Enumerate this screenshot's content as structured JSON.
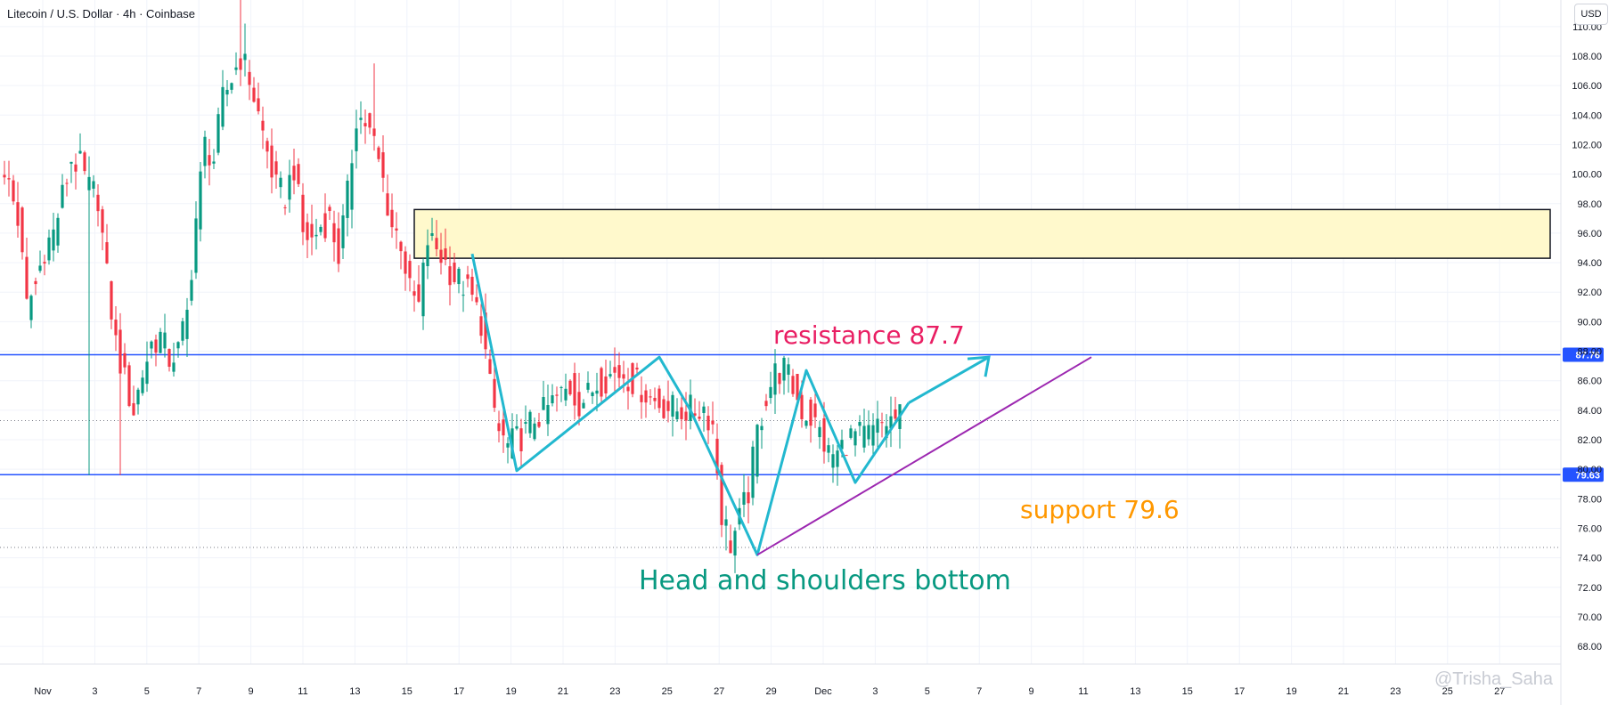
{
  "header": {
    "title": "Litecoin / U.S. Dollar · 4h · Coinbase"
  },
  "currency": "USD",
  "watermark": "@Trisha_Saha",
  "colors": {
    "up": "#089981",
    "down": "#f23645",
    "level": "#2453ff",
    "pattern": "#22b8cf",
    "trend": "#9c27b0",
    "zone_fill": "#fff9cc",
    "resistance_text": "#e91e63",
    "support_text": "#ff9800",
    "pattern_text": "#089981"
  },
  "chart_data": {
    "type": "candlestick",
    "title": "Litecoin / U.S. Dollar · 4h · Coinbase",
    "ylim": [
      66.8,
      111.8
    ],
    "y_ticks": [
      "110.00",
      "108.00",
      "106.00",
      "104.00",
      "102.00",
      "100.00",
      "98.00",
      "96.00",
      "94.00",
      "92.00",
      "90.00",
      "88.00",
      "86.00",
      "84.00",
      "82.00",
      "80.00",
      "78.00",
      "76.00",
      "74.00",
      "72.00",
      "70.00",
      "68.00"
    ],
    "x_ticks": [
      "Nov",
      "3",
      "5",
      "7",
      "9",
      "11",
      "13",
      "15",
      "17",
      "19",
      "21",
      "23",
      "25",
      "27",
      "29",
      "Dec",
      "3",
      "5",
      "7",
      "9",
      "11",
      "13",
      "15",
      "17",
      "19",
      "21",
      "23",
      "25",
      "27"
    ],
    "close_path": [
      [
        0,
        99.0
      ],
      [
        2,
        99.5
      ],
      [
        4,
        97.0
      ],
      [
        6,
        91.0
      ],
      [
        8,
        92.5
      ],
      [
        10,
        95.0
      ],
      [
        12,
        96.0
      ],
      [
        14,
        98.5
      ],
      [
        16,
        101.0
      ],
      [
        18,
        100.5
      ],
      [
        20,
        99.0
      ],
      [
        22,
        98.5
      ],
      [
        24,
        93.0
      ],
      [
        26,
        88.5
      ],
      [
        28,
        86.0
      ],
      [
        30,
        84.0
      ],
      [
        32,
        86.5
      ],
      [
        34,
        88.5
      ],
      [
        36,
        89.0
      ],
      [
        38,
        87.5
      ],
      [
        40,
        88.0
      ],
      [
        42,
        90.5
      ],
      [
        44,
        97.0
      ],
      [
        46,
        102.0
      ],
      [
        48,
        101.0
      ],
      [
        50,
        105.0
      ],
      [
        52,
        106.5
      ],
      [
        54,
        108.0
      ],
      [
        56,
        106.5
      ],
      [
        58,
        104.0
      ],
      [
        60,
        101.5
      ],
      [
        62,
        99.0
      ],
      [
        64,
        98.5
      ],
      [
        66,
        100.5
      ],
      [
        68,
        96.0
      ],
      [
        70,
        95.5
      ],
      [
        72,
        96.5
      ],
      [
        74,
        97.0
      ],
      [
        76,
        94.5
      ],
      [
        78,
        98.5
      ],
      [
        80,
        104.0
      ],
      [
        82,
        103.5
      ],
      [
        84,
        102.0
      ],
      [
        86,
        99.5
      ],
      [
        88,
        96.5
      ],
      [
        90,
        95.5
      ],
      [
        92,
        92.0
      ],
      [
        94,
        91.0
      ],
      [
        96,
        95.5
      ],
      [
        98,
        95.0
      ],
      [
        100,
        94.0
      ],
      [
        102,
        93.0
      ],
      [
        104,
        92.5
      ],
      [
        106,
        91.5
      ],
      [
        108,
        90.0
      ],
      [
        110,
        85.5
      ],
      [
        112,
        82.5
      ],
      [
        114,
        81.5
      ],
      [
        116,
        82.0
      ],
      [
        118,
        82.5
      ],
      [
        120,
        83.5
      ],
      [
        122,
        83.8
      ],
      [
        124,
        84.5
      ],
      [
        126,
        85.0
      ],
      [
        128,
        85.5
      ],
      [
        130,
        84.5
      ],
      [
        132,
        85.0
      ],
      [
        134,
        85.8
      ],
      [
        136,
        86.2
      ],
      [
        138,
        86.5
      ],
      [
        140,
        86.5
      ],
      [
        142,
        86.0
      ],
      [
        144,
        85.5
      ],
      [
        146,
        84.8
      ],
      [
        148,
        84.5
      ],
      [
        150,
        84.2
      ],
      [
        152,
        84.0
      ],
      [
        154,
        84.0
      ],
      [
        156,
        84.0
      ],
      [
        158,
        84.2
      ],
      [
        160,
        83.0
      ],
      [
        162,
        77.0
      ],
      [
        164,
        75.0
      ],
      [
        166,
        76.5
      ],
      [
        168,
        78.5
      ],
      [
        170,
        82.5
      ],
      [
        172,
        85.0
      ],
      [
        174,
        86.5
      ],
      [
        176,
        86.8
      ],
      [
        178,
        85.5
      ],
      [
        180,
        84.0
      ],
      [
        182,
        83.5
      ],
      [
        184,
        82.5
      ],
      [
        186,
        81.0
      ],
      [
        188,
        81.0
      ],
      [
        190,
        82.0
      ],
      [
        192,
        82.3
      ],
      [
        194,
        82.2
      ],
      [
        196,
        82.5
      ],
      [
        198,
        83.0
      ],
      [
        200,
        83.3
      ],
      [
        202,
        83.5
      ]
    ],
    "wick_extremes": [
      {
        "idx": 20,
        "low": 79.6
      },
      {
        "idx": 27,
        "low": 79.6
      },
      {
        "idx": 54,
        "high": 111.8
      },
      {
        "idx": 55,
        "high": 110.2
      },
      {
        "idx": 84,
        "high": 107.5
      },
      {
        "idx": 163,
        "low": 74.5
      },
      {
        "idx": 164,
        "low": 74.3
      }
    ],
    "price_labels": [
      "87.76",
      "79.63"
    ],
    "dotted_levels": [
      83.3,
      74.7
    ],
    "resistance_zone": {
      "top": 97.6,
      "bottom": 94.3,
      "start_idx": 93
    },
    "pattern_points": [
      [
        106,
        94.6
      ],
      [
        116,
        79.9
      ],
      [
        148,
        87.6
      ],
      [
        155,
        84.0
      ],
      [
        170,
        74.2
      ],
      [
        181,
        86.7
      ],
      [
        192,
        79.1
      ],
      [
        204,
        84.5
      ]
    ],
    "projection": [
      [
        204,
        84.5
      ],
      [
        222,
        87.6
      ]
    ],
    "trendline": [
      [
        170,
        74.2
      ],
      [
        245,
        87.6
      ]
    ],
    "annotations": {
      "resistance": "resistance 87.7",
      "support": "support 79.6",
      "pattern": "Head and shoulders bottom"
    }
  }
}
